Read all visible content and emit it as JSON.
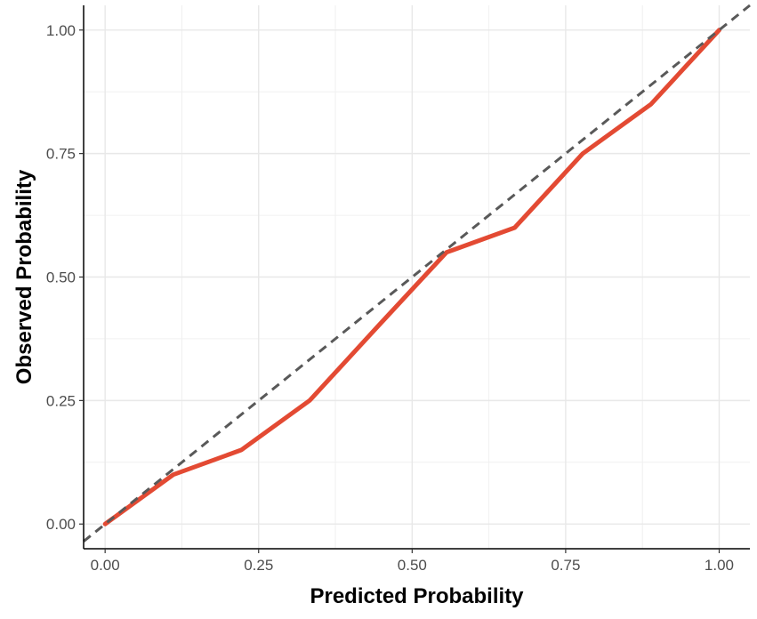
{
  "chart_data": {
    "type": "line",
    "title": "",
    "xlabel": "Predicted Probability",
    "ylabel": "Observed Probability",
    "xlim": [
      -0.035,
      1.05
    ],
    "ylim": [
      -0.05,
      1.05
    ],
    "grid": true,
    "x_ticks": [
      0,
      0.25,
      0.5,
      0.75,
      1
    ],
    "x_tick_labels": [
      "0.00",
      "0.25",
      "0.50",
      "0.75",
      "1.00"
    ],
    "y_ticks": [
      0,
      0.25,
      0.5,
      0.75,
      1
    ],
    "y_tick_labels": [
      "0.00",
      "0.25",
      "0.50",
      "0.75",
      "1.00"
    ],
    "series": [
      {
        "style": "solid",
        "color": "#e34a33",
        "x": [
          0,
          0.111,
          0.222,
          0.333,
          0.444,
          0.556,
          0.667,
          0.778,
          0.889,
          1.0
        ],
        "y": [
          0,
          0.1,
          0.15,
          0.25,
          0.4,
          0.55,
          0.6,
          0.75,
          0.85,
          1.0
        ]
      },
      {
        "style": "dashed",
        "color": "#595959",
        "x": [
          -0.035,
          1.05
        ],
        "y": [
          -0.035,
          1.05
        ]
      }
    ]
  }
}
